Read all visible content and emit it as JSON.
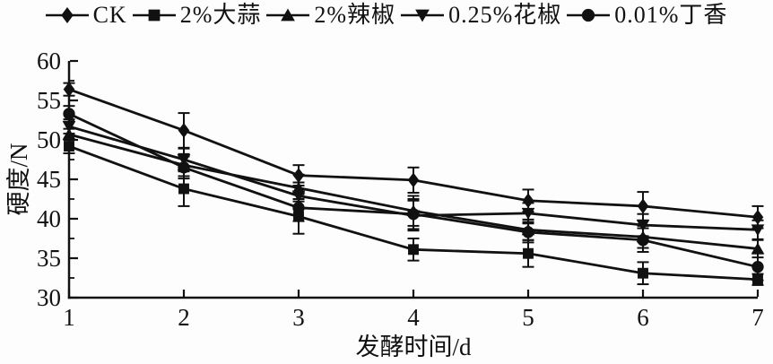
{
  "chart_data": {
    "type": "line",
    "xlabel": "发酵时间/d",
    "ylabel": "硬度/N",
    "x": [
      1,
      2,
      3,
      4,
      5,
      6,
      7
    ],
    "xticks": [
      1,
      2,
      3,
      4,
      5,
      6,
      7
    ],
    "yticks": [
      30,
      35,
      40,
      45,
      50,
      55,
      60
    ],
    "xlim": [
      1,
      7
    ],
    "ylim": [
      30,
      60
    ],
    "y_minor_step": 2.5,
    "grid": false,
    "legend_position": "top",
    "line_color": "#111111",
    "series": [
      {
        "name": "CK",
        "marker": "diamond",
        "values": [
          56.4,
          51.2,
          45.5,
          44.9,
          42.3,
          41.6,
          40.2
        ],
        "errors": [
          0.8,
          2.2,
          1.3,
          1.6,
          1.4,
          1.8,
          1.4
        ]
      },
      {
        "name": "2%大蒜",
        "marker": "square",
        "values": [
          49.2,
          43.8,
          40.3,
          36.1,
          35.6,
          33.1,
          32.3
        ],
        "errors": [
          0.9,
          2.2,
          2.2,
          1.4,
          1.7,
          1.4,
          0.7
        ]
      },
      {
        "name": "2%辣椒",
        "marker": "triangle-up",
        "values": [
          50.7,
          46.8,
          43.9,
          41.0,
          38.6,
          37.7,
          36.2
        ],
        "errors": [
          0.7,
          1.4,
          1.7,
          1.9,
          1.3,
          1.4,
          1.1
        ]
      },
      {
        "name": "0.25%花椒",
        "marker": "triangle-down",
        "values": [
          51.7,
          47.5,
          42.9,
          40.4,
          40.7,
          39.2,
          38.6
        ],
        "errors": [
          0.9,
          1.4,
          1.7,
          1.9,
          1.3,
          1.4,
          1.2
        ]
      },
      {
        "name": "0.01%丁香",
        "marker": "circle",
        "values": [
          53.3,
          46.5,
          41.4,
          40.6,
          38.3,
          37.3,
          33.9
        ],
        "errors": [
          1.0,
          1.4,
          1.7,
          1.9,
          1.3,
          1.5,
          1.7
        ]
      }
    ]
  }
}
